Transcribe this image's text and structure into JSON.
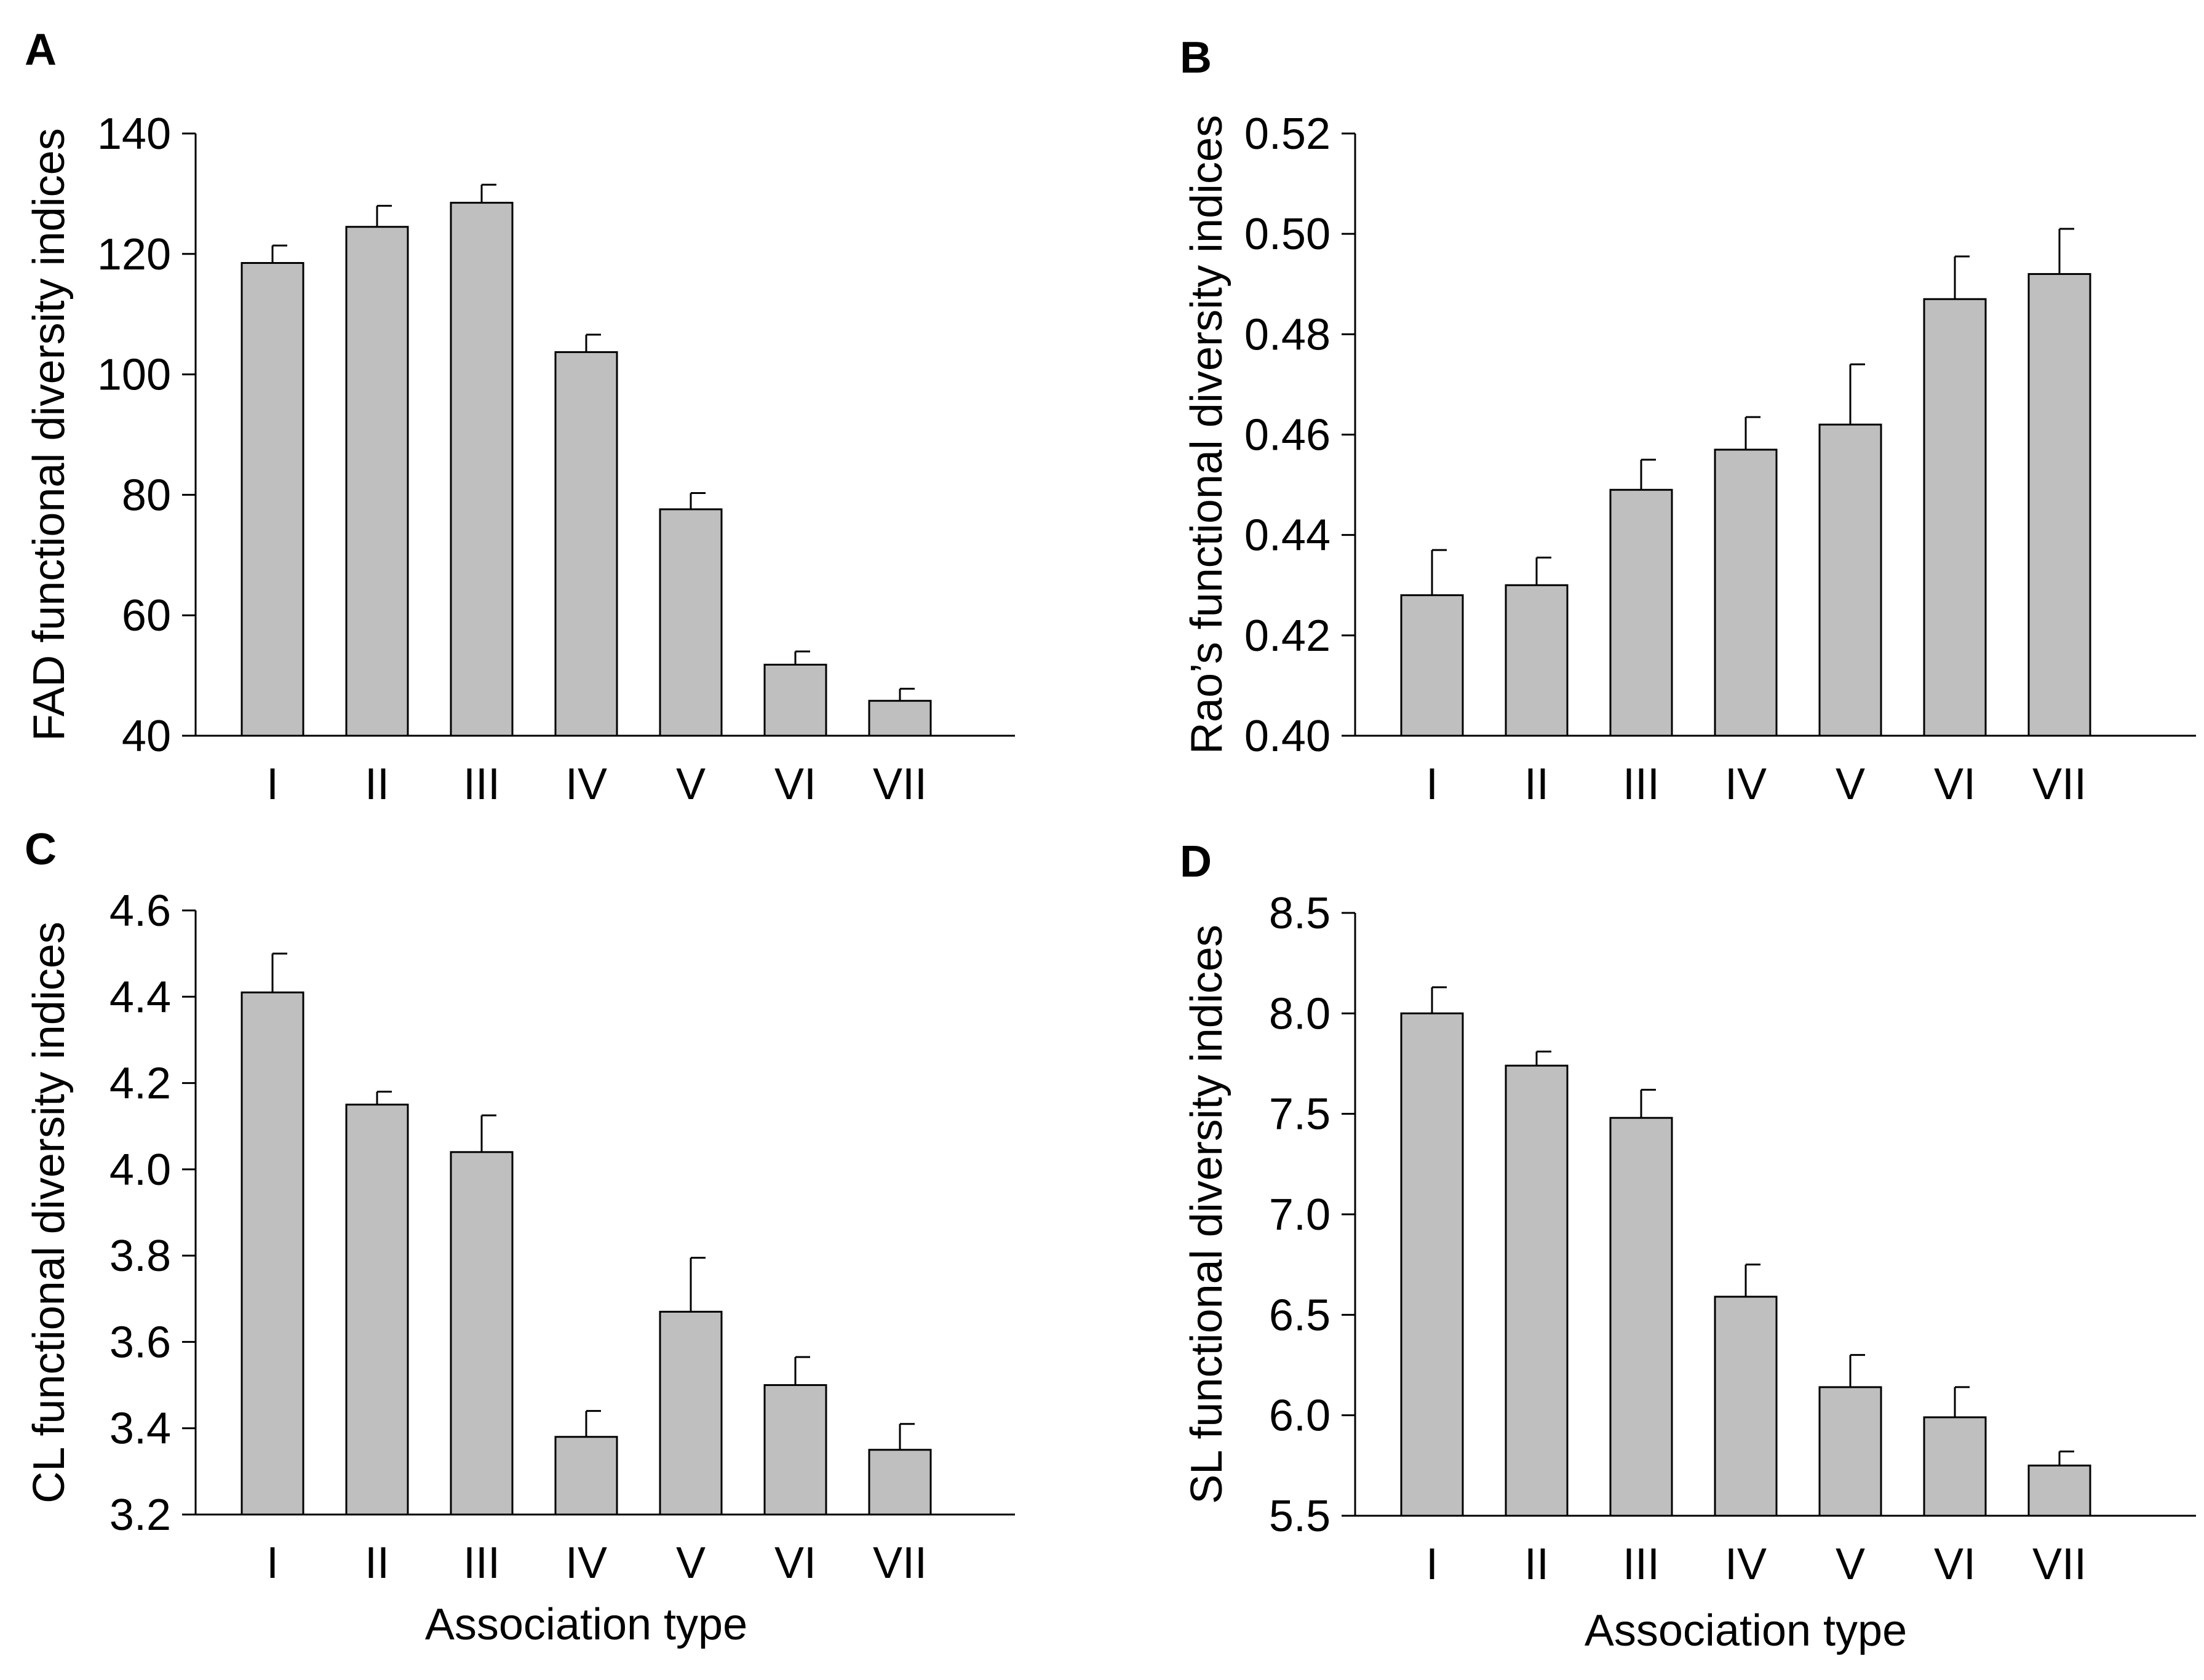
{
  "colors": {
    "bar_fill": "#bfbfbf",
    "stroke": "#000000",
    "background": "#ffffff"
  },
  "chart_data": [
    {
      "type": "bar",
      "panel": "A",
      "categories": [
        "I",
        "II",
        "III",
        "IV",
        "V",
        "VI",
        "VII"
      ],
      "values": [
        118.5,
        124.5,
        128.5,
        103.7,
        77.6,
        51.8,
        45.8
      ],
      "errors": [
        2.9,
        3.5,
        3.0,
        2.9,
        2.7,
        2.2,
        2.0
      ],
      "ylabel": "FAD functional diversity indices",
      "xlabel": "",
      "ylim": [
        40,
        140
      ],
      "yticks": [
        "40",
        "60",
        "80",
        "100",
        "120",
        "140"
      ],
      "grid": false
    },
    {
      "type": "bar",
      "panel": "B",
      "categories": [
        "I",
        "II",
        "III",
        "IV",
        "V",
        "VI",
        "VII"
      ],
      "values": [
        0.428,
        0.43,
        0.449,
        0.457,
        0.462,
        0.487,
        0.492
      ],
      "errors": [
        0.009,
        0.0055,
        0.006,
        0.0065,
        0.012,
        0.0085,
        0.009
      ],
      "ylabel": "Rao’s functional diversity indices",
      "xlabel": "",
      "ylim": [
        0.4,
        0.52
      ],
      "yticks": [
        "0.40",
        "0.42",
        "0.44",
        "0.46",
        "0.48",
        "0.50",
        "0.52"
      ],
      "grid": false
    },
    {
      "type": "bar",
      "panel": "C",
      "categories": [
        "I",
        "II",
        "III",
        "IV",
        "V",
        "VI",
        "VII"
      ],
      "values": [
        4.41,
        4.15,
        4.04,
        3.38,
        3.67,
        3.5,
        3.35
      ],
      "errors": [
        0.09,
        0.03,
        0.085,
        0.06,
        0.125,
        0.065,
        0.06
      ],
      "ylabel": "CL functional diversity indices",
      "xlabel": "Association type",
      "ylim": [
        3.2,
        4.6
      ],
      "yticks": [
        "3.2",
        "3.4",
        "3.6",
        "3.8",
        "4.0",
        "4.2",
        "4.4",
        "4.6"
      ],
      "grid": false
    },
    {
      "type": "bar",
      "panel": "D",
      "categories": [
        "I",
        "II",
        "III",
        "IV",
        "V",
        "VI",
        "VII"
      ],
      "values": [
        8.0,
        7.74,
        7.48,
        6.59,
        6.14,
        5.99,
        5.75
      ],
      "errors": [
        0.13,
        0.07,
        0.14,
        0.16,
        0.16,
        0.15,
        0.07
      ],
      "ylabel": "SL functional diversity indices",
      "xlabel": "Association type",
      "ylim": [
        5.5,
        8.5
      ],
      "yticks": [
        "5.5",
        "6.0",
        "6.5",
        "7.0",
        "7.5",
        "8.0",
        "8.5"
      ],
      "grid": false
    }
  ]
}
